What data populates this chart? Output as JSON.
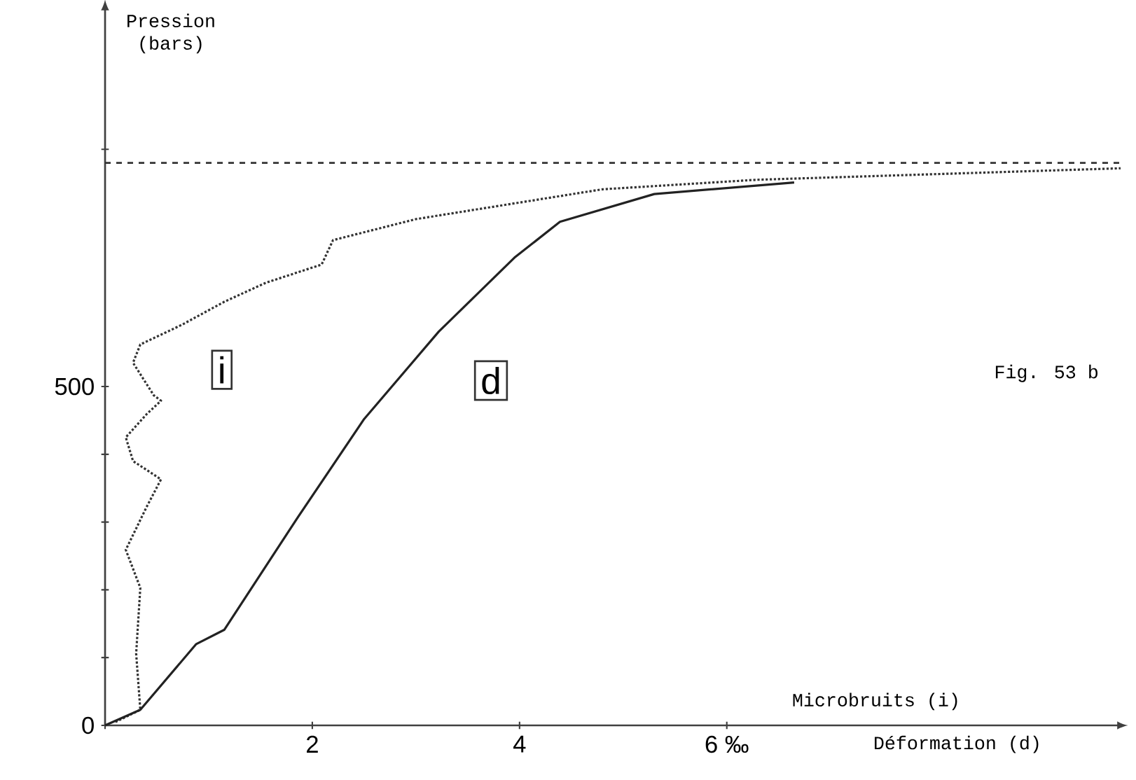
{
  "chart_data": {
    "type": "line",
    "xlabel": "Déformation (d)",
    "ylabel": "Pression (bars)",
    "annotations": [
      "Microbruits (i)",
      "Fig. 53 b"
    ],
    "xlim": [
      0,
      9.8
    ],
    "ylim": [
      0,
      1060
    ],
    "xticks": [
      {
        "value": 0,
        "label": null
      },
      2,
      4,
      {
        "value": 6,
        "label": "6 ‰"
      }
    ],
    "yticks": [
      0,
      {
        "value": 100,
        "label": null
      },
      {
        "value": 200,
        "label": null
      },
      {
        "value": 300,
        "label": null
      },
      {
        "value": 400,
        "label": null
      },
      500,
      {
        "value": 850,
        "label": null
      }
    ],
    "ref_lines": [
      {
        "axis": "y",
        "value": 830,
        "line_style": "dashed",
        "color": "#333333"
      }
    ],
    "series": [
      {
        "name": "i",
        "color": "#333333",
        "line_style": "dotted",
        "x": [
          0.1,
          0.34,
          0.3,
          0.34,
          0.2,
          0.4,
          0.54,
          0.27,
          0.2,
          0.4,
          0.54,
          0.47,
          0.27,
          0.34,
          0.74,
          1.15,
          1.55,
          2.09,
          2.2,
          3.0,
          4.8,
          6.28,
          9.8
        ],
        "values": [
          5,
          23,
          106,
          203,
          259,
          322,
          363,
          390,
          425,
          459,
          479,
          487,
          535,
          562,
          591,
          625,
          653,
          680,
          716,
          747,
          791,
          805,
          822
        ]
      },
      {
        "name": "d",
        "color": "#222222",
        "line_style": "solid",
        "x": [
          0,
          0.34,
          0.88,
          1.15,
          1.86,
          2.5,
          3.22,
          3.95,
          4.39,
          5.3,
          6.65
        ],
        "values": [
          0,
          23,
          120,
          141,
          307,
          452,
          581,
          690,
          743,
          784,
          801
        ]
      }
    ]
  }
}
